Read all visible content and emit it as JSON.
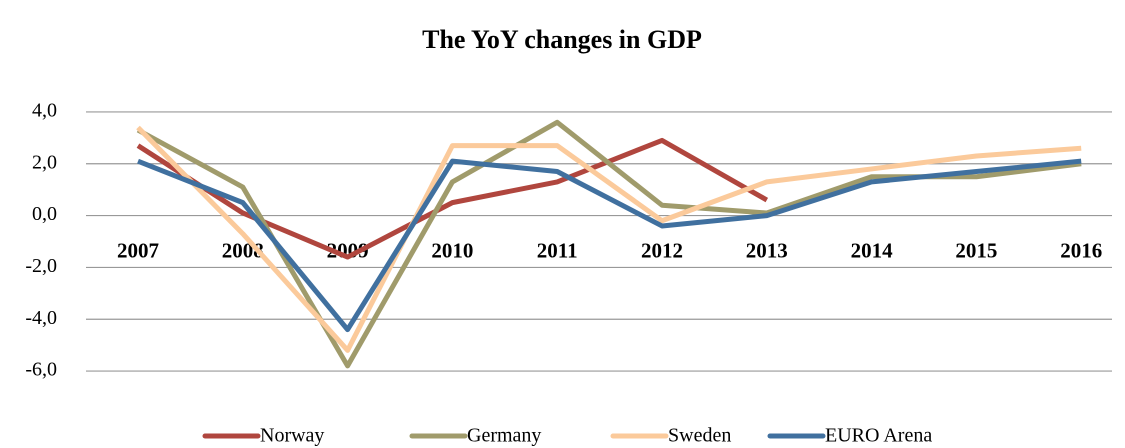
{
  "chart_data": {
    "type": "line",
    "title": "The YoY changes in GDP",
    "categories": [
      "2007",
      "2008",
      "2009",
      "2010",
      "2011",
      "2012",
      "2013",
      "2014",
      "2015",
      "2016"
    ],
    "series": [
      {
        "name": "Norway",
        "color": "#b0463e",
        "values": [
          2.7,
          0.1,
          -1.6,
          0.5,
          1.3,
          2.9,
          0.6,
          null,
          null,
          null
        ]
      },
      {
        "name": "Germany",
        "color": "#a09b6b",
        "values": [
          3.3,
          1.1,
          -5.8,
          1.3,
          3.6,
          0.4,
          0.1,
          1.5,
          1.5,
          2.0
        ]
      },
      {
        "name": "Sweden",
        "color": "#fbca9b",
        "values": [
          3.4,
          -0.7,
          -5.2,
          2.7,
          2.7,
          -0.2,
          1.3,
          1.8,
          2.3,
          2.6
        ]
      },
      {
        "name": "EURO Arena",
        "color": "#40709f",
        "values": [
          2.1,
          0.5,
          -4.4,
          2.1,
          1.7,
          -0.4,
          0.0,
          1.3,
          1.7,
          2.1
        ]
      }
    ],
    "ylim": [
      -7,
      5
    ],
    "yticks": [
      {
        "value": -6,
        "label": "-6,0"
      },
      {
        "value": -4,
        "label": "-4,0"
      },
      {
        "value": -2,
        "label": "-2,0"
      },
      {
        "value": 0,
        "label": "0,0"
      },
      {
        "value": 2,
        "label": "2,0"
      },
      {
        "value": 4,
        "label": "4,0"
      }
    ],
    "grid": true,
    "legend": "bottom"
  }
}
